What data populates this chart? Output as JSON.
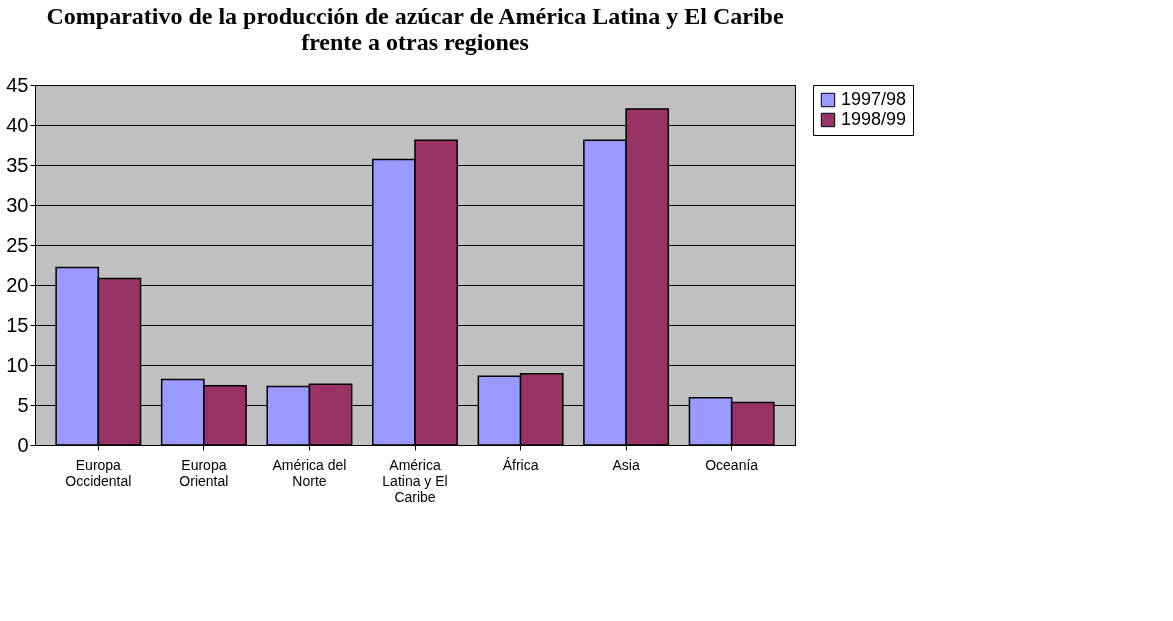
{
  "chart_data": {
    "type": "bar",
    "title": "Comparativo de la producción de azúcar de América Latina y El Caribe frente a otras regiones",
    "categories": [
      "Europa Occidental",
      "Europa Oriental",
      "América del Norte",
      "América Latina y El Caribe",
      "África",
      "Asia",
      "Oceanía"
    ],
    "series": [
      {
        "name": "1997/98",
        "color": "#9999ff",
        "values": [
          22.2,
          8.2,
          7.3,
          35.7,
          8.6,
          38.1,
          5.9
        ]
      },
      {
        "name": "1998/99",
        "color": "#993366",
        "values": [
          20.8,
          7.4,
          7.6,
          38.1,
          8.9,
          42.0,
          5.3
        ]
      }
    ],
    "ylim": [
      0,
      45
    ],
    "yticks": [
      0,
      5,
      10,
      15,
      20,
      25,
      30,
      35,
      40,
      45
    ],
    "grid": "y",
    "legend": "right"
  }
}
